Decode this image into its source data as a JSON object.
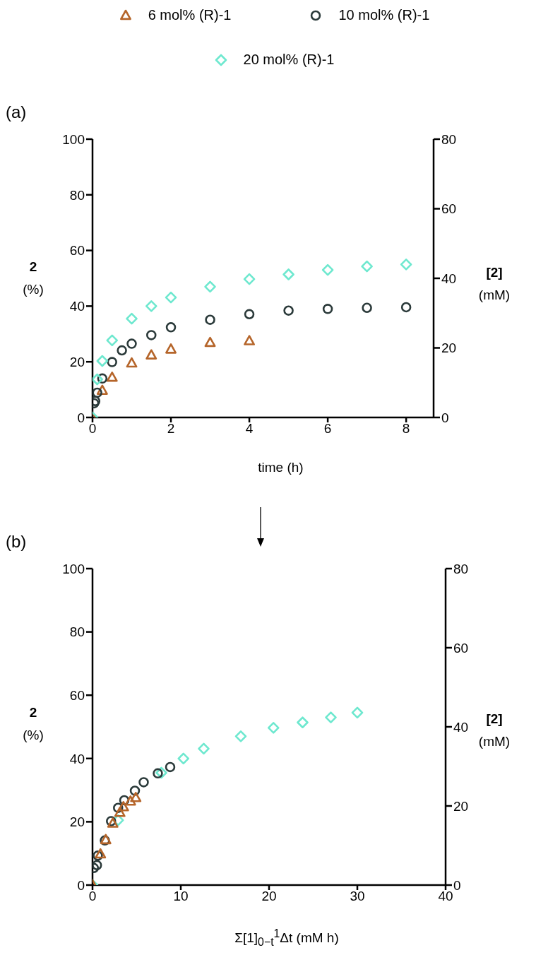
{
  "chart_data": [
    {
      "type": "scatter",
      "title": "(a)",
      "xlabel": "time (h)",
      "ylabel": "2 (%)",
      "y2label": "[2] (mM)",
      "xlim": [
        0,
        8.7
      ],
      "xticks": [
        0,
        2,
        4,
        6,
        8
      ],
      "ylim": [
        0,
        100
      ],
      "yticks": [
        0,
        20,
        40,
        60,
        80,
        100
      ],
      "y2lim": [
        0,
        80
      ],
      "y2ticks": [
        0,
        20,
        40,
        60,
        80
      ],
      "legend": "top",
      "series": [
        {
          "name": "6 mol% (R)-1",
          "color": "#b5652a",
          "marker": "triangle",
          "x": [
            0,
            0.25,
            0.5,
            1,
            1.5,
            2,
            3,
            4
          ],
          "values": [
            0,
            9.7,
            14.4,
            19.5,
            22.4,
            24.5,
            26.9,
            27.5
          ]
        },
        {
          "name": "10 mol% (R)-1",
          "color": "#2b3a3a",
          "marker": "circle",
          "x": [
            0.04,
            0.07,
            0.12,
            0.25,
            0.5,
            0.75,
            1,
            1.5,
            2,
            3,
            4,
            5,
            6,
            7,
            8
          ],
          "values": [
            5.1,
            5.9,
            8.9,
            14,
            19.9,
            24.1,
            26.5,
            29.6,
            32.4,
            35.1,
            37.1,
            38.4,
            39,
            39.4,
            39.6
          ]
        },
        {
          "name": "20 mol% (R)-1",
          "color": "#6ee8cf",
          "marker": "diamond",
          "x": [
            0,
            0.12,
            0.25,
            0.5,
            1,
            1.5,
            2,
            3,
            4,
            5,
            6,
            7,
            8
          ],
          "values": [
            0,
            13.7,
            20.3,
            27.7,
            35.5,
            40,
            43.1,
            47,
            49.7,
            51.4,
            53,
            54.3,
            55
          ]
        }
      ]
    },
    {
      "type": "scatter",
      "title": "(b)",
      "xlabel": "Σ[1]$_{0−t}$$^{1}$Δt (mM h)",
      "ylabel": "2 (%)",
      "y2label": "[2] (mM)",
      "xlim": [
        0,
        40
      ],
      "xticks": [
        0,
        10,
        20,
        30,
        40
      ],
      "ylim": [
        0,
        100
      ],
      "yticks": [
        0,
        20,
        40,
        60,
        80,
        100
      ],
      "y2lim": [
        0,
        80
      ],
      "y2ticks": [
        0,
        20,
        40,
        60,
        80
      ],
      "series": [
        {
          "color": "#6ee8cf",
          "marker": "diamond",
          "x": [
            0,
            1.5,
            2.9,
            7.8,
            10.3,
            12.6,
            16.8,
            20.5,
            23.8,
            27,
            30
          ],
          "values": [
            0,
            null,
            20.5,
            35.5,
            40,
            43.1,
            47,
            49.7,
            51.4,
            53,
            54.5
          ]
        },
        {
          "color": "#2b3a3a",
          "marker": "circle",
          "x": [
            0.15,
            0.5,
            0.6,
            1.4,
            2.1,
            2.9,
            3.6,
            4.8,
            5.8,
            7.4,
            8.8
          ],
          "values": [
            5.4,
            6.3,
            9.3,
            14.1,
            20.2,
            24.4,
            26.8,
            29.8,
            32.5,
            35.3,
            37.3
          ]
        },
        {
          "color": "#b5652a",
          "marker": "triangle",
          "x": [
            0,
            0.9,
            1.5,
            2.3,
            3.1,
            3.5,
            4.3,
            4.9
          ],
          "values": [
            0,
            9.8,
            14.3,
            19.5,
            22.9,
            24.7,
            26.5,
            27.6
          ]
        }
      ]
    }
  ]
}
